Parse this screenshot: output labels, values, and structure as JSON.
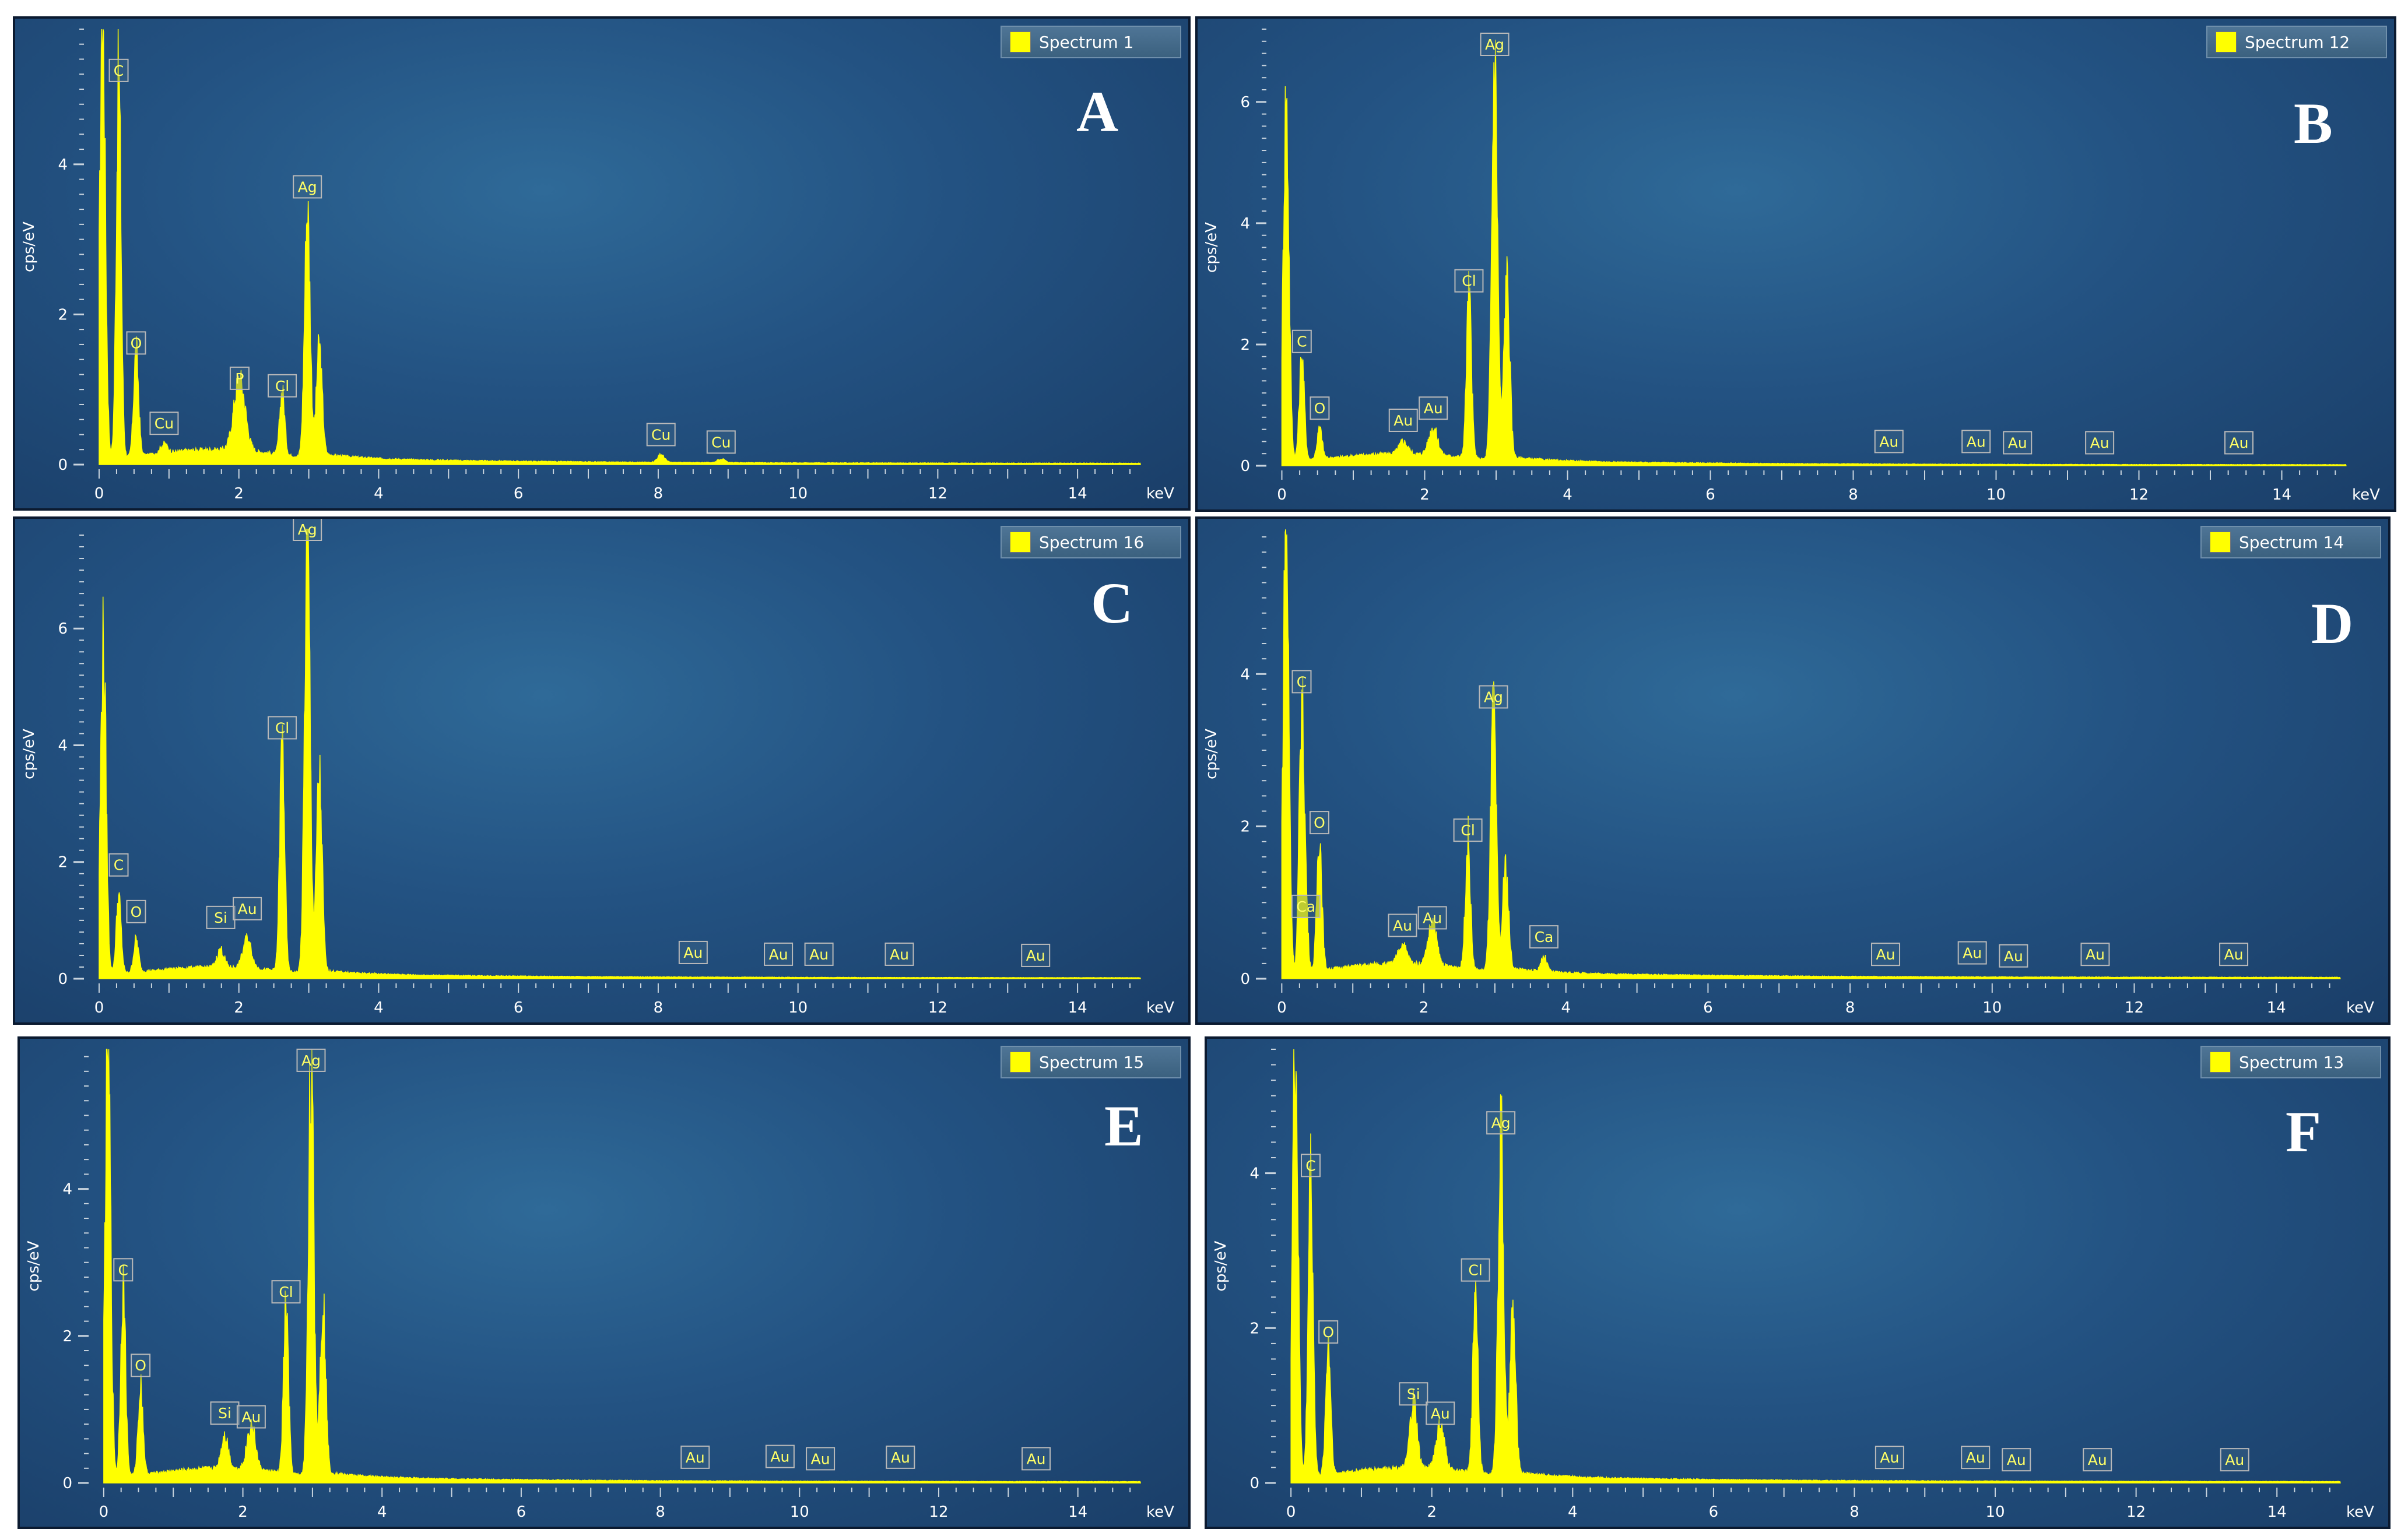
{
  "chart_data": [
    {
      "type": "area",
      "panel_label": "A",
      "legend": "Spectrum 1",
      "ylabel": "cps/eV",
      "xlabel": "keV",
      "xlim": [
        -0.2,
        15
      ],
      "ylim": [
        0,
        5.8
      ],
      "xticks": [
        0,
        2,
        4,
        6,
        8,
        10,
        12,
        14
      ],
      "yticks": [
        0,
        2,
        4
      ],
      "peaks": [
        {
          "element": "",
          "keV": 0.05,
          "height": 5.8,
          "width": 0.04
        },
        {
          "element": "C",
          "keV": 0.28,
          "height": 5.0,
          "width": 0.035
        },
        {
          "element": "O",
          "keV": 0.53,
          "height": 1.4,
          "width": 0.035
        },
        {
          "element": "Cu",
          "keV": 0.93,
          "height": 0.12,
          "width": 0.05
        },
        {
          "element": "P",
          "keV": 2.01,
          "height": 0.95,
          "width": 0.08
        },
        {
          "element": "Cl",
          "keV": 2.62,
          "height": 0.85,
          "width": 0.035
        },
        {
          "element": "Ag",
          "keV": 2.98,
          "height": 3.3,
          "width": 0.04
        },
        {
          "element": "",
          "keV": 3.15,
          "height": 1.5,
          "width": 0.04
        },
        {
          "element": "Cu",
          "keV": 8.04,
          "height": 0.1,
          "width": 0.05
        },
        {
          "element": "Cu",
          "keV": 8.9,
          "height": 0.05,
          "width": 0.05
        }
      ],
      "labels": [
        {
          "text": "C",
          "keV": 0.28,
          "y": 5.25
        },
        {
          "text": "O",
          "keV": 0.53,
          "y": 1.62
        },
        {
          "text": "Cu",
          "keV": 0.93,
          "y": 0.55
        },
        {
          "text": "P",
          "keV": 2.01,
          "y": 1.15
        },
        {
          "text": "Cl",
          "keV": 2.62,
          "y": 1.05
        },
        {
          "text": "Ag",
          "keV": 2.98,
          "y": 3.7
        },
        {
          "text": "Cu",
          "keV": 8.04,
          "y": 0.4
        },
        {
          "text": "Cu",
          "keV": 8.9,
          "y": 0.3
        }
      ]
    },
    {
      "type": "area",
      "panel_label": "B",
      "legend": "Spectrum 12",
      "ylabel": "cps/eV",
      "xlabel": "keV",
      "xlim": [
        -0.2,
        15
      ],
      "ylim": [
        0,
        7.2
      ],
      "xticks": [
        0,
        2,
        4,
        6,
        8,
        10,
        12,
        14
      ],
      "yticks": [
        0,
        2,
        4,
        6
      ],
      "peaks": [
        {
          "element": "",
          "keV": 0.06,
          "height": 5.9,
          "width": 0.04
        },
        {
          "element": "C",
          "keV": 0.28,
          "height": 1.7,
          "width": 0.035
        },
        {
          "element": "O",
          "keV": 0.53,
          "height": 0.5,
          "width": 0.035
        },
        {
          "element": "Au",
          "keV": 1.7,
          "height": 0.2,
          "width": 0.06
        },
        {
          "element": "Au",
          "keV": 2.12,
          "height": 0.45,
          "width": 0.06
        },
        {
          "element": "Cl",
          "keV": 2.62,
          "height": 2.7,
          "width": 0.035
        },
        {
          "element": "Ag",
          "keV": 2.98,
          "height": 6.6,
          "width": 0.04
        },
        {
          "element": "",
          "keV": 3.15,
          "height": 3.0,
          "width": 0.04
        }
      ],
      "labels": [
        {
          "text": "C",
          "keV": 0.28,
          "y": 2.05
        },
        {
          "text": "O",
          "keV": 0.53,
          "y": 0.95
        },
        {
          "text": "Au",
          "keV": 1.7,
          "y": 0.75
        },
        {
          "text": "Au",
          "keV": 2.12,
          "y": 0.95
        },
        {
          "text": "Cl",
          "keV": 2.62,
          "y": 3.05
        },
        {
          "text": "Ag",
          "keV": 2.98,
          "y": 6.95
        },
        {
          "text": "Au",
          "keV": 8.5,
          "y": 0.4
        },
        {
          "text": "Au",
          "keV": 9.72,
          "y": 0.4
        },
        {
          "text": "Au",
          "keV": 10.3,
          "y": 0.38
        },
        {
          "text": "Au",
          "keV": 11.45,
          "y": 0.38
        },
        {
          "text": "Au",
          "keV": 13.4,
          "y": 0.38
        }
      ]
    },
    {
      "type": "area",
      "panel_label": "C",
      "legend": "Spectrum 16",
      "ylabel": "cps/eV",
      "xlabel": "keV",
      "xlim": [
        -0.2,
        15
      ],
      "ylim": [
        0,
        7.7
      ],
      "xticks": [
        0,
        2,
        4,
        6,
        8,
        10,
        12,
        14
      ],
      "yticks": [
        0,
        2,
        4,
        6
      ],
      "peaks": [
        {
          "element": "",
          "keV": 0.06,
          "height": 5.6,
          "width": 0.04
        },
        {
          "element": "C",
          "keV": 0.28,
          "height": 1.3,
          "width": 0.035
        },
        {
          "element": "O",
          "keV": 0.53,
          "height": 0.55,
          "width": 0.035
        },
        {
          "element": "Si",
          "keV": 1.74,
          "height": 0.3,
          "width": 0.05
        },
        {
          "element": "Au",
          "keV": 2.12,
          "height": 0.5,
          "width": 0.06
        },
        {
          "element": "Cl",
          "keV": 2.62,
          "height": 3.9,
          "width": 0.035
        },
        {
          "element": "Ag",
          "keV": 2.98,
          "height": 7.4,
          "width": 0.04
        },
        {
          "element": "",
          "keV": 3.15,
          "height": 3.4,
          "width": 0.04
        }
      ],
      "labels": [
        {
          "text": "C",
          "keV": 0.28,
          "y": 1.95
        },
        {
          "text": "O",
          "keV": 0.53,
          "y": 1.15
        },
        {
          "text": "Si",
          "keV": 1.74,
          "y": 1.05
        },
        {
          "text": "Au",
          "keV": 2.12,
          "y": 1.2
        },
        {
          "text": "Cl",
          "keV": 2.62,
          "y": 4.3
        },
        {
          "text": "Ag",
          "keV": 2.98,
          "y": 7.7
        },
        {
          "text": "Au",
          "keV": 8.5,
          "y": 0.45
        },
        {
          "text": "Au",
          "keV": 9.72,
          "y": 0.42
        },
        {
          "text": "Au",
          "keV": 10.3,
          "y": 0.42
        },
        {
          "text": "Au",
          "keV": 11.45,
          "y": 0.42
        },
        {
          "text": "Au",
          "keV": 13.4,
          "y": 0.4
        }
      ]
    },
    {
      "type": "area",
      "panel_label": "D",
      "legend": "Spectrum 14",
      "ylabel": "cps/eV",
      "xlabel": "keV",
      "xlim": [
        -0.2,
        15
      ],
      "ylim": [
        0,
        5.9
      ],
      "xticks": [
        0,
        2,
        4,
        6,
        8,
        10,
        12,
        14
      ],
      "yticks": [
        0,
        2,
        4
      ],
      "peaks": [
        {
          "element": "",
          "keV": 0.06,
          "height": 5.9,
          "width": 0.04
        },
        {
          "element": "C",
          "keV": 0.28,
          "height": 3.4,
          "width": 0.035
        },
        {
          "element": "Ca",
          "keV": 0.34,
          "height": 0.7,
          "width": 0.03
        },
        {
          "element": "O",
          "keV": 0.53,
          "height": 1.8,
          "width": 0.035
        },
        {
          "element": "Au",
          "keV": 1.7,
          "height": 0.25,
          "width": 0.06
        },
        {
          "element": "Au",
          "keV": 2.12,
          "height": 0.55,
          "width": 0.06
        },
        {
          "element": "Cl",
          "keV": 2.62,
          "height": 1.7,
          "width": 0.035
        },
        {
          "element": "Ag",
          "keV": 2.98,
          "height": 3.4,
          "width": 0.04
        },
        {
          "element": "",
          "keV": 3.15,
          "height": 1.4,
          "width": 0.04
        },
        {
          "element": "Ca",
          "keV": 3.69,
          "height": 0.2,
          "width": 0.04
        }
      ],
      "labels": [
        {
          "text": "C",
          "keV": 0.28,
          "y": 3.9
        },
        {
          "text": "Ca",
          "keV": 0.34,
          "y": 0.95
        },
        {
          "text": "O",
          "keV": 0.53,
          "y": 2.05
        },
        {
          "text": "Au",
          "keV": 1.7,
          "y": 0.7
        },
        {
          "text": "Au",
          "keV": 2.12,
          "y": 0.8
        },
        {
          "text": "Cl",
          "keV": 2.62,
          "y": 1.95
        },
        {
          "text": "Ag",
          "keV": 2.98,
          "y": 3.7
        },
        {
          "text": "Ca",
          "keV": 3.69,
          "y": 0.55
        },
        {
          "text": "Au",
          "keV": 8.5,
          "y": 0.32
        },
        {
          "text": "Au",
          "keV": 9.72,
          "y": 0.34
        },
        {
          "text": "Au",
          "keV": 10.3,
          "y": 0.3
        },
        {
          "text": "Au",
          "keV": 11.45,
          "y": 0.32
        },
        {
          "text": "Au",
          "keV": 13.4,
          "y": 0.32
        }
      ]
    },
    {
      "type": "area",
      "panel_label": "E",
      "legend": "Spectrum 15",
      "ylabel": "cps/eV",
      "xlabel": "keV",
      "xlim": [
        -0.2,
        15
      ],
      "ylim": [
        0,
        5.9
      ],
      "xticks": [
        0,
        2,
        4,
        6,
        8,
        10,
        12,
        14
      ],
      "yticks": [
        0,
        2,
        4
      ],
      "peaks": [
        {
          "element": "",
          "keV": 0.06,
          "height": 5.9,
          "width": 0.04
        },
        {
          "element": "C",
          "keV": 0.28,
          "height": 2.6,
          "width": 0.035
        },
        {
          "element": "O",
          "keV": 0.53,
          "height": 1.2,
          "width": 0.035
        },
        {
          "element": "Si",
          "keV": 1.74,
          "height": 0.45,
          "width": 0.05
        },
        {
          "element": "Au",
          "keV": 2.12,
          "height": 0.6,
          "width": 0.06
        },
        {
          "element": "Cl",
          "keV": 2.62,
          "height": 2.3,
          "width": 0.035
        },
        {
          "element": "Ag",
          "keV": 2.98,
          "height": 5.5,
          "width": 0.04
        },
        {
          "element": "",
          "keV": 3.15,
          "height": 2.4,
          "width": 0.04
        }
      ],
      "labels": [
        {
          "text": "C",
          "keV": 0.28,
          "y": 2.9
        },
        {
          "text": "O",
          "keV": 0.53,
          "y": 1.6
        },
        {
          "text": "Si",
          "keV": 1.74,
          "y": 0.95
        },
        {
          "text": "Au",
          "keV": 2.12,
          "y": 0.9
        },
        {
          "text": "Cl",
          "keV": 2.62,
          "y": 2.6
        },
        {
          "text": "Ag",
          "keV": 2.98,
          "y": 5.75
        },
        {
          "text": "Au",
          "keV": 8.5,
          "y": 0.35
        },
        {
          "text": "Au",
          "keV": 9.72,
          "y": 0.36
        },
        {
          "text": "Au",
          "keV": 10.3,
          "y": 0.33
        },
        {
          "text": "Au",
          "keV": 11.45,
          "y": 0.35
        },
        {
          "text": "Au",
          "keV": 13.4,
          "y": 0.33
        }
      ]
    },
    {
      "type": "area",
      "panel_label": "F",
      "legend": "Spectrum 13",
      "ylabel": "cps/eV",
      "xlabel": "keV",
      "xlim": [
        -0.2,
        15
      ],
      "ylim": [
        0,
        5.6
      ],
      "xticks": [
        0,
        2,
        4,
        6,
        8,
        10,
        12,
        14
      ],
      "yticks": [
        0,
        2,
        4
      ],
      "peaks": [
        {
          "element": "",
          "keV": 0.06,
          "height": 5.6,
          "width": 0.04
        },
        {
          "element": "C",
          "keV": 0.28,
          "height": 3.9,
          "width": 0.035
        },
        {
          "element": "O",
          "keV": 0.53,
          "height": 1.7,
          "width": 0.035
        },
        {
          "element": "Si",
          "keV": 1.74,
          "height": 0.85,
          "width": 0.05
        },
        {
          "element": "Au",
          "keV": 2.12,
          "height": 0.55,
          "width": 0.06
        },
        {
          "element": "Cl",
          "keV": 2.62,
          "height": 2.5,
          "width": 0.035
        },
        {
          "element": "Ag",
          "keV": 2.98,
          "height": 4.4,
          "width": 0.04
        },
        {
          "element": "",
          "keV": 3.15,
          "height": 2.1,
          "width": 0.04
        }
      ],
      "labels": [
        {
          "text": "C",
          "keV": 0.28,
          "y": 4.1
        },
        {
          "text": "O",
          "keV": 0.53,
          "y": 1.95
        },
        {
          "text": "Si",
          "keV": 1.74,
          "y": 1.15
        },
        {
          "text": "Au",
          "keV": 2.12,
          "y": 0.9
        },
        {
          "text": "Cl",
          "keV": 2.62,
          "y": 2.75
        },
        {
          "text": "Ag",
          "keV": 2.98,
          "y": 4.65
        },
        {
          "text": "Au",
          "keV": 8.5,
          "y": 0.33
        },
        {
          "text": "Au",
          "keV": 9.72,
          "y": 0.33
        },
        {
          "text": "Au",
          "keV": 10.3,
          "y": 0.3
        },
        {
          "text": "Au",
          "keV": 11.45,
          "y": 0.3
        },
        {
          "text": "Au",
          "keV": 13.4,
          "y": 0.3
        }
      ]
    }
  ],
  "colors": {
    "spectrum_fill": "#ffff00",
    "panel_background": "#235282",
    "axis_text": "#ffffff",
    "peak_label_border": "#b9b9b9",
    "peak_label_text": "#ffff66"
  }
}
